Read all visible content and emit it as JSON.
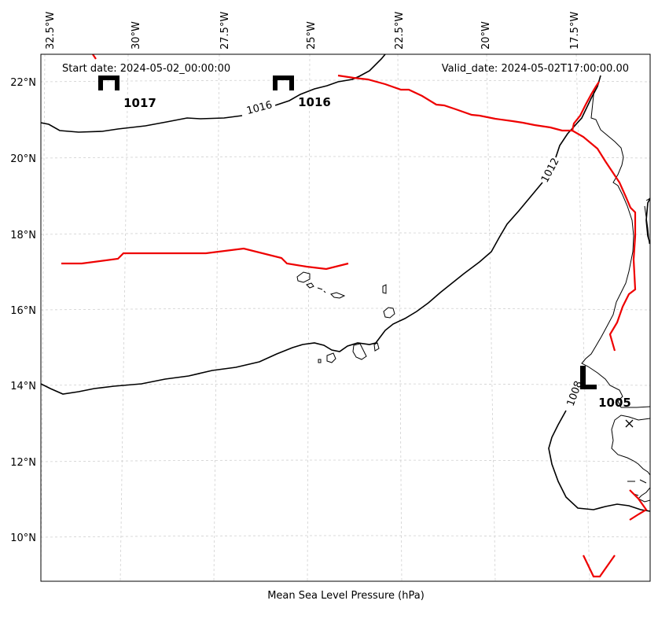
{
  "map": {
    "start_date": "Start date: 2024-05-02_00:00:00",
    "valid_date": "Valid_date: 2024-05-02T17:00:00.00",
    "xlabel": "Mean Sea Level Pressure (hPa)",
    "lon_ticks": [
      "32.5°W",
      "30°W",
      "27.5°W",
      "25°W",
      "22.5°W",
      "20°W",
      "17.5°W"
    ],
    "lat_ticks": [
      "22°N",
      "20°N",
      "18°N",
      "16°N",
      "14°N",
      "12°N",
      "10°N"
    ],
    "isobar_labels": [
      "1016",
      "1012",
      "1008"
    ],
    "pressure_centers": [
      {
        "type": "high",
        "symbol": "H",
        "value": "1017"
      },
      {
        "type": "high",
        "symbol": "H",
        "value": "1016"
      },
      {
        "type": "low",
        "symbol": "L",
        "value": "1005"
      }
    ],
    "colors": {
      "isobar": "#000000",
      "front": "#ee0000",
      "grid": "#cccccc"
    }
  }
}
